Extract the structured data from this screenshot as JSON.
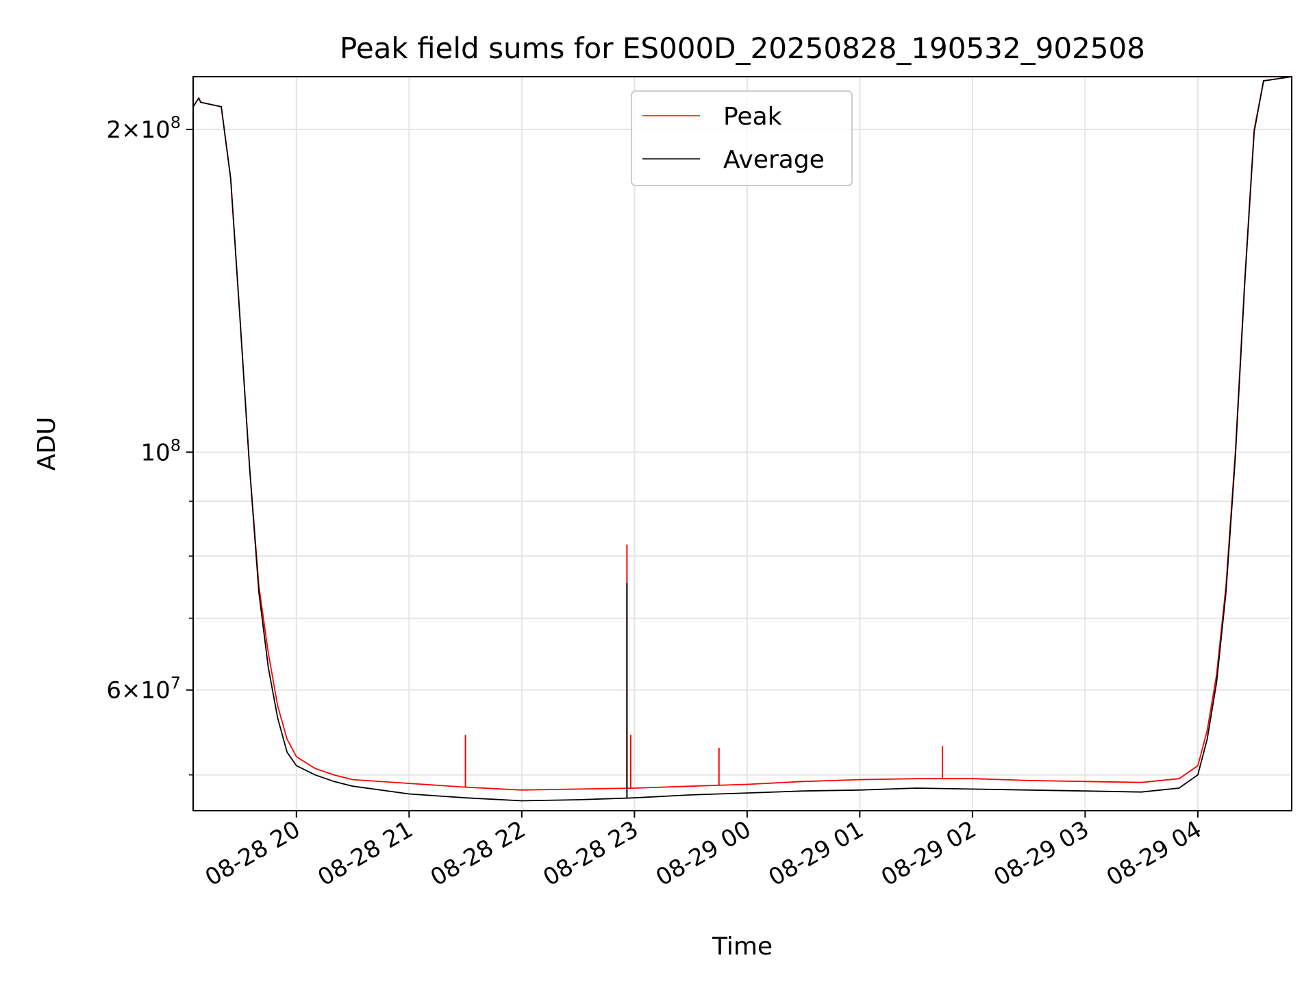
{
  "chart_data": {
    "type": "line",
    "title": "Peak field sums for ES000D_20250828_190532_902508",
    "xlabel": "Time",
    "ylabel": "ADU",
    "yscale": "log",
    "ylim": [
      46300000,
      224000000
    ],
    "xlim": [
      "2025-08-28 19:05",
      "2025-08-29 04:50"
    ],
    "grid": true,
    "legend_position": "top-center",
    "x_ticks": [
      {
        "t": "2025-08-28 20:00",
        "label": "08-28 20"
      },
      {
        "t": "2025-08-28 21:00",
        "label": "08-28 21"
      },
      {
        "t": "2025-08-28 22:00",
        "label": "08-28 22"
      },
      {
        "t": "2025-08-28 23:00",
        "label": "08-28 23"
      },
      {
        "t": "2025-08-29 00:00",
        "label": "08-29 00"
      },
      {
        "t": "2025-08-29 01:00",
        "label": "08-29 01"
      },
      {
        "t": "2025-08-29 02:00",
        "label": "08-29 02"
      },
      {
        "t": "2025-08-29 03:00",
        "label": "08-29 03"
      },
      {
        "t": "2025-08-29 04:00",
        "label": "08-29 04"
      }
    ],
    "y_ticks": [
      {
        "value": 200000000,
        "mantissa": "2",
        "exponent": "8",
        "times": "×",
        "base": "10"
      },
      {
        "value": 100000000,
        "mantissa": "",
        "exponent": "8",
        "times": "",
        "base": "10"
      },
      {
        "value": 60000000,
        "mantissa": "6",
        "exponent": "7",
        "times": "×",
        "base": "10"
      }
    ],
    "series": [
      {
        "name": "Peak",
        "color": "#ff0000",
        "points": [
          [
            "2025-08-28 19:05",
            210000000
          ],
          [
            "2025-08-28 19:08",
            214000000
          ],
          [
            "2025-08-28 19:09",
            212000000
          ],
          [
            "2025-08-28 19:20",
            210000000
          ],
          [
            "2025-08-28 19:25",
            180000000
          ],
          [
            "2025-08-28 19:30",
            133000000
          ],
          [
            "2025-08-28 19:35",
            97000000
          ],
          [
            "2025-08-28 19:40",
            75000000
          ],
          [
            "2025-08-28 19:45",
            65000000
          ],
          [
            "2025-08-28 19:50",
            58000000
          ],
          [
            "2025-08-28 19:55",
            54000000
          ],
          [
            "2025-08-28 20:00",
            52000000
          ],
          [
            "2025-08-28 20:10",
            50700000
          ],
          [
            "2025-08-28 20:20",
            50000000
          ],
          [
            "2025-08-28 20:30",
            49500000
          ],
          [
            "2025-08-28 21:00",
            49100000
          ],
          [
            "2025-08-28 21:30",
            48700000
          ],
          [
            "2025-08-28 22:00",
            48400000
          ],
          [
            "2025-08-28 22:30",
            48500000
          ],
          [
            "2025-08-28 23:00",
            48600000
          ],
          [
            "2025-08-28 23:30",
            48800000
          ],
          [
            "2025-08-29 00:00",
            49000000
          ],
          [
            "2025-08-29 00:30",
            49300000
          ],
          [
            "2025-08-29 01:00",
            49500000
          ],
          [
            "2025-08-29 01:30",
            49600000
          ],
          [
            "2025-08-29 02:00",
            49600000
          ],
          [
            "2025-08-29 02:30",
            49400000
          ],
          [
            "2025-08-29 03:00",
            49300000
          ],
          [
            "2025-08-29 03:30",
            49200000
          ],
          [
            "2025-08-29 03:50",
            49600000
          ],
          [
            "2025-08-29 04:00",
            51000000
          ],
          [
            "2025-08-29 04:05",
            55000000
          ],
          [
            "2025-08-29 04:10",
            62000000
          ],
          [
            "2025-08-29 04:15",
            75000000
          ],
          [
            "2025-08-29 04:20",
            100000000
          ],
          [
            "2025-08-29 04:25",
            145000000
          ],
          [
            "2025-08-29 04:30",
            200000000
          ],
          [
            "2025-08-29 04:35",
            222000000
          ],
          [
            "2025-08-29 04:50",
            224000000
          ]
        ],
        "spikes": [
          [
            "2025-08-28 21:30",
            54500000
          ],
          [
            "2025-08-28 22:56",
            82000000
          ],
          [
            "2025-08-28 22:58",
            54500000
          ],
          [
            "2025-08-28 23:45",
            53000000
          ],
          [
            "2025-08-29 01:44",
            53200000
          ]
        ]
      },
      {
        "name": "Average",
        "color": "#000000",
        "points": [
          [
            "2025-08-28 19:05",
            210000000
          ],
          [
            "2025-08-28 19:08",
            214000000
          ],
          [
            "2025-08-28 19:09",
            212000000
          ],
          [
            "2025-08-28 19:20",
            210000000
          ],
          [
            "2025-08-28 19:25",
            180000000
          ],
          [
            "2025-08-28 19:30",
            133000000
          ],
          [
            "2025-08-28 19:35",
            97000000
          ],
          [
            "2025-08-28 19:40",
            74000000
          ],
          [
            "2025-08-28 19:45",
            63000000
          ],
          [
            "2025-08-28 19:50",
            56500000
          ],
          [
            "2025-08-28 19:55",
            52500000
          ],
          [
            "2025-08-28 20:00",
            51000000
          ],
          [
            "2025-08-28 20:10",
            50000000
          ],
          [
            "2025-08-28 20:20",
            49300000
          ],
          [
            "2025-08-28 20:30",
            48800000
          ],
          [
            "2025-08-28 21:00",
            48000000
          ],
          [
            "2025-08-28 21:30",
            47600000
          ],
          [
            "2025-08-28 22:00",
            47300000
          ],
          [
            "2025-08-28 22:30",
            47400000
          ],
          [
            "2025-08-28 23:00",
            47600000
          ],
          [
            "2025-08-28 23:30",
            47900000
          ],
          [
            "2025-08-29 00:00",
            48100000
          ],
          [
            "2025-08-29 00:30",
            48300000
          ],
          [
            "2025-08-29 01:00",
            48400000
          ],
          [
            "2025-08-29 01:30",
            48600000
          ],
          [
            "2025-08-29 02:00",
            48500000
          ],
          [
            "2025-08-29 02:30",
            48400000
          ],
          [
            "2025-08-29 03:00",
            48300000
          ],
          [
            "2025-08-29 03:30",
            48200000
          ],
          [
            "2025-08-29 03:50",
            48600000
          ],
          [
            "2025-08-29 04:00",
            50000000
          ],
          [
            "2025-08-29 04:05",
            54000000
          ],
          [
            "2025-08-29 04:10",
            61000000
          ],
          [
            "2025-08-29 04:15",
            74000000
          ],
          [
            "2025-08-29 04:20",
            99000000
          ],
          [
            "2025-08-29 04:25",
            144000000
          ],
          [
            "2025-08-29 04:30",
            199000000
          ],
          [
            "2025-08-29 04:35",
            222000000
          ],
          [
            "2025-08-29 04:50",
            224000000
          ]
        ],
        "spikes": [
          [
            "2025-08-28 22:56",
            75500000
          ]
        ]
      }
    ]
  }
}
